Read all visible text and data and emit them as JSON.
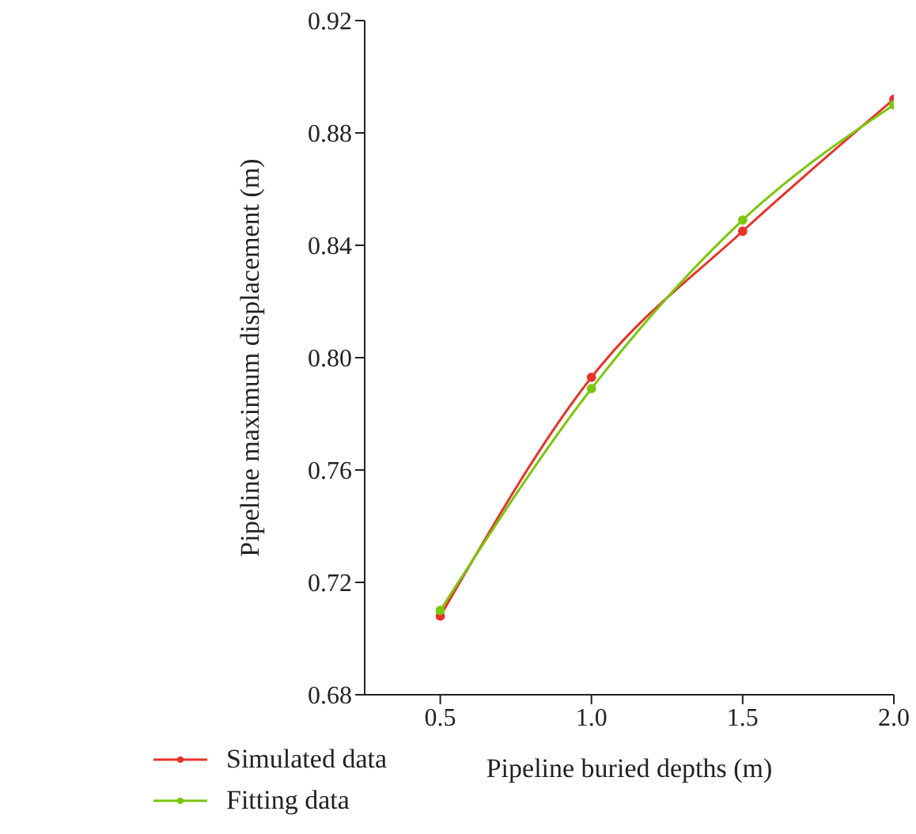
{
  "chart_data": {
    "type": "line",
    "xlabel": "Pipeline buried depths (m)",
    "ylabel": "Pipeline maximum displacement (m)",
    "x": [
      0.5,
      1.0,
      1.5,
      2.0
    ],
    "series": [
      {
        "name": "Simulated data",
        "color": "#e8322a",
        "values": [
          0.708,
          0.793,
          0.845,
          0.892
        ]
      },
      {
        "name": "Fitting data",
        "color": "#7ac70c",
        "values": [
          0.71,
          0.789,
          0.849,
          0.89
        ]
      }
    ],
    "xlim": [
      0.25,
      2.0
    ],
    "xticks": [
      {
        "value": 0.5,
        "label": "0.5"
      },
      {
        "value": 1.0,
        "label": "1.0"
      },
      {
        "value": 1.5,
        "label": "1.5"
      },
      {
        "value": 2.0,
        "label": "2.0"
      }
    ],
    "ylim": [
      0.68,
      0.92
    ],
    "yticks": [
      0.68,
      0.72,
      0.76,
      {
        "value": 0.8,
        "label": "0.80"
      },
      0.84,
      0.88,
      0.92
    ],
    "grid": false,
    "legend": "bottom left",
    "marker": "circle",
    "line_style": "solid"
  }
}
